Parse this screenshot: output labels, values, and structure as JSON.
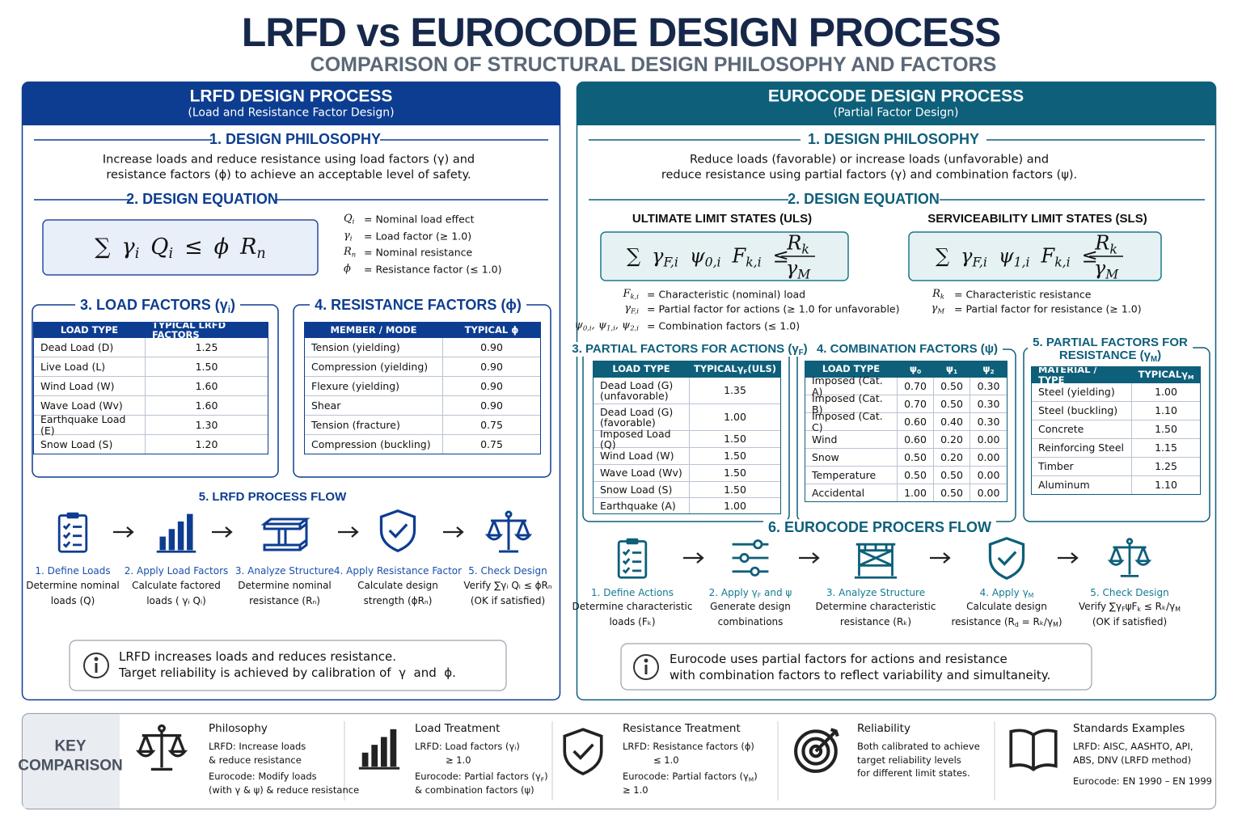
{
  "header": {
    "title": "LRFD vs EUROCODE DESIGN PROCESS",
    "subtitle": "COMPARISON OF STRUCTURAL DESIGN PHILOSOPHY AND FACTORS"
  },
  "lrfd": {
    "title": "LRFD DESIGN PROCESS",
    "subtitle": "(Load and Resistance Factor Design)",
    "philosophy": {
      "heading": "1. DESIGN PHILOSOPHY",
      "text": [
        "Increase loads and reduce resistance using load factors (γ) and",
        "resistance factors (ϕ) to achieve an acceptable level of safety."
      ]
    },
    "equation": {
      "heading": "2. DESIGN EQUATION",
      "formula": [
        "∑",
        {
          "base": "γ",
          "sub": "i"
        },
        {
          "base": "Q",
          "sub": "i"
        },
        "≤",
        "ϕ",
        {
          "base": "R",
          "sub": "n"
        }
      ],
      "legend": [
        {
          "symbol": {
            "base": "Q",
            "sub": "i"
          },
          "text": "= Nominal load effect"
        },
        {
          "symbol": {
            "base": "γ",
            "sub": "i"
          },
          "text": "= Load factor (≥ 1.0)"
        },
        {
          "symbol": {
            "base": "R",
            "sub": "n"
          },
          "text": "= Nominal resistance"
        },
        {
          "symbol": "ϕ",
          "text": "= Resistance factor (≤ 1.0)"
        }
      ]
    },
    "load_factors": {
      "heading": [
        "3. LOAD FACTORS (",
        {
          "base": "γ",
          "sub": "i"
        },
        ")"
      ],
      "columns": [
        "LOAD TYPE",
        "TYPICAL LRFD FACTORS"
      ],
      "rows": [
        [
          "Dead Load (D)",
          "1.25"
        ],
        [
          "Live Load (L)",
          "1.50"
        ],
        [
          "Wind Load (W)",
          "1.60"
        ],
        [
          "Wave Load (Wv)",
          "1.60"
        ],
        [
          "Earthquake Load (E)",
          "1.30"
        ],
        [
          "Snow Load (S)",
          "1.20"
        ]
      ]
    },
    "resistance_factors": {
      "heading": "4. RESISTANCE FACTORS (ϕ)",
      "columns": [
        "MEMBER / MODE",
        "TYPICAL ϕ"
      ],
      "rows": [
        [
          "Tension (yielding)",
          "0.90"
        ],
        [
          "Compression (yielding)",
          "0.90"
        ],
        [
          "Flexure (yielding)",
          "0.90"
        ],
        [
          "Shear",
          "0.90"
        ],
        [
          "Tension (fracture)",
          "0.75"
        ],
        [
          "Compression (buckling)",
          "0.75"
        ]
      ]
    },
    "flow": {
      "heading": "5. LRFD PROCESS FLOW",
      "steps": [
        {
          "title": "1. Define Loads",
          "text": [
            "Determine nominal",
            "loads (Q)"
          ]
        },
        {
          "title": "2. Apply Load Factors",
          "text": [
            "Calculate factored",
            "loads ( γᵢ Qᵢ)"
          ]
        },
        {
          "title": "3. Analyze Structure",
          "text": [
            "Determine nominal",
            "resistance (Rₙ)"
          ]
        },
        {
          "title": "4. Apply Resistance Factor",
          "text": [
            "Calculate design",
            "strength (ϕRₙ)"
          ]
        },
        {
          "title": "5. Check Design",
          "text": [
            "Verify ∑γᵢ Qᵢ ≤ ϕRₙ",
            "(OK if satisfied)"
          ]
        }
      ]
    },
    "note": [
      "LRFD increases loads and reduces resistance.",
      "Target reliability is achieved by calibration of  γ  and  ϕ."
    ]
  },
  "eurocode": {
    "title": "EUROCODE DESIGN PROCESS",
    "subtitle": "(Partial Factor Design)",
    "philosophy": {
      "heading": "1. DESIGN PHILOSOPHY",
      "text": [
        "Reduce loads (favorable) or increase loads (unfavorable) and",
        "reduce resistance using partial factors (γ) and combination factors (ψ)."
      ]
    },
    "equation": {
      "heading": "2. DESIGN EQUATION",
      "uls": {
        "heading": "ULTIMATE LIMIT STATES (ULS)",
        "formula": {
          "lhs": [
            "∑",
            {
              "base": "γ",
              "sub": "F,i"
            },
            {
              "base": "ψ",
              "sub": "0,i"
            },
            {
              "base": "F",
              "sub": "k,i"
            },
            "≤"
          ],
          "numerator": {
            "base": "R",
            "sub": "k"
          },
          "denominator": {
            "base": "γ",
            "sub": "M"
          }
        },
        "legend": [
          {
            "symbol": {
              "base": "F",
              "sub": "k,i"
            },
            "text": "= Characteristic (nominal) load"
          },
          {
            "symbol": {
              "base": "γ",
              "sub": "F,i"
            },
            "text": "= Partial factor for actions (≥ 1.0 for unfavorable)"
          },
          {
            "symbol": [
              {
                "base": "ψ",
                "sub": "0,i"
              },
              ", ",
              {
                "base": "ψ",
                "sub": "1,i"
              },
              ", ",
              {
                "base": "ψ",
                "sub": "2,i"
              }
            ],
            "text": "= Combination factors (≤ 1.0)"
          }
        ]
      },
      "sls": {
        "heading": "SERVICEABILITY LIMIT STATES (SLS)",
        "formula": {
          "lhs": [
            "∑",
            {
              "base": "γ",
              "sub": "F,i"
            },
            {
              "base": "ψ",
              "sub": "1,i"
            },
            {
              "base": "F",
              "sub": "k,i"
            },
            "≤"
          ],
          "numerator": {
            "base": "R",
            "sub": "k"
          },
          "denominator": {
            "base": "γ",
            "sub": "M"
          }
        },
        "legend": [
          {
            "symbol": {
              "base": "R",
              "sub": "k"
            },
            "text": "= Characteristic resistance"
          },
          {
            "symbol": {
              "base": "γ",
              "sub": "M"
            },
            "text": "= Partial factor for resistance (≥ 1.0)"
          }
        ]
      }
    },
    "actions": {
      "heading": [
        "3. PARTIAL FACTORS FOR ACTIONS (",
        {
          "base": "γ",
          "sub": "F"
        },
        ")"
      ],
      "columns": [
        "LOAD TYPE",
        [
          "TYPICAL ",
          {
            "base": "γ",
            "sub": "F"
          },
          " (ULS)"
        ]
      ],
      "rows": [
        [
          "Dead Load (G)\n(unfavorable)",
          "1.35"
        ],
        [
          "Dead Load (G)\n(favorable)",
          "1.00"
        ],
        [
          "Imposed Load (Q)",
          "1.50"
        ],
        [
          "Wind Load (W)",
          "1.50"
        ],
        [
          "Wave Load (Wv)",
          "1.50"
        ],
        [
          "Snow Load (S)",
          "1.50"
        ],
        [
          "Earthquake (A)",
          "1.00"
        ]
      ]
    },
    "combination": {
      "heading": "4. COMBINATION FACTORS (ψ)",
      "columns": [
        "LOAD TYPE",
        {
          "base": "ψ",
          "sub": "0"
        },
        {
          "base": "ψ",
          "sub": "1"
        },
        {
          "base": "ψ",
          "sub": "2"
        }
      ],
      "rows": [
        [
          "Imposed (Cat. A)",
          "0.70",
          "0.50",
          "0.30"
        ],
        [
          "Imposed (Cat. B)",
          "0.70",
          "0.50",
          "0.30"
        ],
        [
          "Imposed (Cat. C)",
          "0.60",
          "0.40",
          "0.30"
        ],
        [
          "Wind",
          "0.60",
          "0.20",
          "0.00"
        ],
        [
          "Snow",
          "0.50",
          "0.20",
          "0.00"
        ],
        [
          "Temperature",
          "0.50",
          "0.50",
          "0.00"
        ],
        [
          "Accidental",
          "1.00",
          "0.50",
          "0.00"
        ]
      ]
    },
    "resistance": {
      "heading_lines": [
        "5. PARTIAL FACTORS FOR",
        [
          "RESISTANCE (",
          {
            "base": "γ",
            "sub": "M"
          },
          ")"
        ]
      ],
      "columns": [
        "MATERIAL / TYPE",
        [
          "TYPICAL ",
          {
            "base": "γ",
            "sub": "M"
          }
        ]
      ],
      "rows": [
        [
          "Steel (yielding)",
          "1.00"
        ],
        [
          "Steel (buckling)",
          "1.10"
        ],
        [
          "Concrete",
          "1.50"
        ],
        [
          "Reinforcing Steel",
          "1.15"
        ],
        [
          "Timber",
          "1.25"
        ],
        [
          "Aluminum",
          "1.10"
        ]
      ]
    },
    "flow": {
      "heading": "6. EUROCODE PROCERS FLOW",
      "steps": [
        {
          "title": "1. Define Actions",
          "text": [
            "Determine characteristic",
            "loads (Fₖ)"
          ]
        },
        {
          "title": [
            "2. Apply ",
            {
              "base": "γ",
              "sub": "F"
            },
            " and ψ"
          ],
          "text": [
            "Generate design",
            "combinations"
          ]
        },
        {
          "title": "3. Analyze Structure",
          "text": [
            "Determine characteristic",
            "resistance (Rₖ)"
          ]
        },
        {
          "title": [
            "4. Apply ",
            {
              "base": "γ",
              "sub": "M"
            }
          ],
          "text": [
            "Calculate design",
            [
              "resistance (",
              {
                "base": "R",
                "sub": "d"
              },
              " = Rₖ/",
              {
                "base": "γ",
                "sub": "M"
              },
              ")"
            ]
          ]
        },
        {
          "title": "5. Check Design",
          "text": [
            [
              "Verify ∑",
              {
                "base": "γ",
                "sub": "F"
              },
              "ψ",
              {
                "base": "F",
                "sub": "k"
              },
              " ≤ Rₖ/",
              {
                "base": "γ",
                "sub": "M"
              }
            ],
            "(OK if satisfied)"
          ]
        }
      ]
    },
    "note": [
      "Eurocode uses partial factors for actions and resistance",
      "with combination factors to reflect variability and simultaneity."
    ]
  },
  "key_comparison": {
    "label": [
      "KEY",
      "COMPARISON"
    ],
    "items": [
      {
        "title": "Philosophy",
        "lrfd": [
          "LRFD: Increase loads",
          "& reduce resistance"
        ],
        "eurocode": [
          "Eurocode: Modify loads",
          "(with γ & ψ) & reduce resistance"
        ]
      },
      {
        "title": "Load Treatment",
        "lrfd": [
          "LRFD: Load factors (γᵢ)",
          "≥ 1.0"
        ],
        "eurocode": [
          [
            "Eurocode: Partial factors (",
            {
              "base": "γ",
              "sub": "F"
            },
            ")"
          ],
          "& combination factors (ψ)"
        ]
      },
      {
        "title": "Resistance Treatment",
        "lrfd": [
          "LRFD: Resistance factors (ϕ)",
          "≤ 1.0"
        ],
        "eurocode": [
          [
            "Eurocode: Partial factors (",
            {
              "base": "γ",
              "sub": "M"
            },
            ")"
          ],
          "≥ 1.0"
        ]
      },
      {
        "title": "Reliability",
        "text": [
          "Both calibrated to achieve",
          "target reliability levels",
          "for different limit states."
        ]
      },
      {
        "title": "Standards Examples",
        "lrfd": [
          "LRFD: AISC, AASHTO, API,",
          "ABS, DNV (LRFD method)"
        ],
        "eurocode": [
          "Eurocode: EN 1990 – EN 1999"
        ]
      }
    ]
  }
}
